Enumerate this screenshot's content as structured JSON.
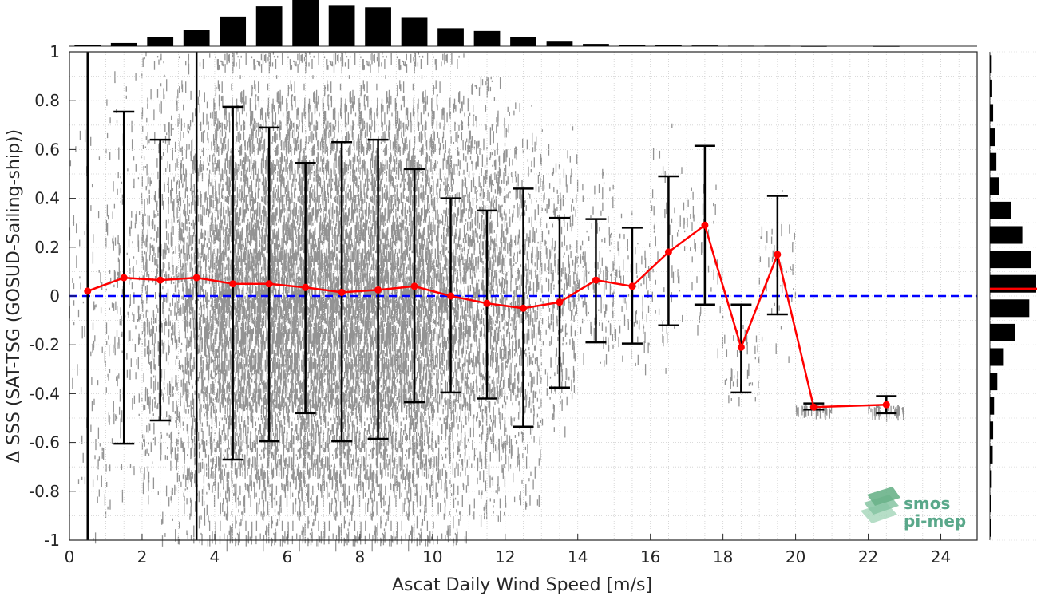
{
  "chart_data": {
    "type": "scatter",
    "xlabel": "Ascat Daily Wind Speed [m/s]",
    "ylabel": "Δ SSS (SAT-TSG (GOSUD-Sailing-ship))",
    "xlim": [
      0,
      25
    ],
    "ylim": [
      -1,
      1
    ],
    "x_ticks": [
      0,
      2,
      4,
      6,
      8,
      10,
      12,
      14,
      16,
      18,
      20,
      22,
      24
    ],
    "y_ticks": [
      -1,
      -0.8,
      -0.6,
      -0.4,
      -0.2,
      0,
      0.2,
      0.4,
      0.6,
      0.8,
      1
    ],
    "grid": true,
    "reference_line": {
      "y": 0,
      "color": "#0000ff",
      "style": "dashed"
    },
    "scatter_color": "#808080",
    "series": [
      {
        "type": "line-with-errorbars",
        "color": "#ff0000",
        "x": [
          0.5,
          1.5,
          2.5,
          3.5,
          4.5,
          5.5,
          6.5,
          7.5,
          8.5,
          9.5,
          10.5,
          11.5,
          12.5,
          13.5,
          14.5,
          15.5,
          16.5,
          17.5,
          18.5,
          19.5,
          20.5,
          22.5
        ],
        "mean": [
          0.02,
          0.075,
          0.065,
          0.075,
          0.05,
          0.05,
          0.035,
          0.015,
          0.025,
          0.04,
          0.0,
          -0.03,
          -0.05,
          -0.025,
          0.065,
          0.04,
          0.18,
          0.29,
          -0.21,
          0.17,
          -0.455,
          -0.445
        ],
        "lower": [
          -1.0,
          -0.605,
          -0.51,
          -1.0,
          -0.67,
          -0.595,
          -0.48,
          -0.595,
          -0.585,
          -0.435,
          -0.395,
          -0.42,
          -0.535,
          -0.375,
          -0.19,
          -0.195,
          -0.12,
          -0.035,
          -0.395,
          -0.075,
          -0.465,
          -0.48
        ],
        "upper": [
          1.0,
          0.755,
          0.64,
          1.0,
          0.775,
          0.69,
          0.545,
          0.63,
          0.64,
          0.52,
          0.4,
          0.35,
          0.44,
          0.32,
          0.315,
          0.28,
          0.49,
          0.615,
          -0.035,
          0.41,
          -0.44,
          -0.41
        ]
      }
    ],
    "scatter_density": {
      "x": [
        0.5,
        1.5,
        2.5,
        3.5,
        4.5,
        5.5,
        6.5,
        7.5,
        8.5,
        9.5,
        10.5,
        11.5,
        12.5,
        13.5,
        14.5,
        15.5,
        16.5,
        17.5,
        18.5,
        19.5,
        20.5,
        22.5
      ],
      "spread_low": [
        -1,
        -0.9,
        -1,
        -1,
        -1,
        -1,
        -1,
        -1,
        -1,
        -1,
        -1,
        -0.9,
        -0.85,
        -0.55,
        -0.3,
        -0.3,
        -0.3,
        -0.25,
        -0.48,
        -0.25,
        -0.47,
        -0.47
      ],
      "spread_high": [
        0.7,
        0.95,
        1,
        1,
        1,
        1,
        1,
        1,
        1,
        1,
        1,
        0.9,
        0.8,
        0.7,
        0.55,
        0.35,
        0.75,
        0.65,
        0,
        0.45,
        -0.44,
        -0.44
      ]
    },
    "top_histogram": {
      "x": [
        0.5,
        1.5,
        2.5,
        3.5,
        4.5,
        5.5,
        6.5,
        7.5,
        8.5,
        9.5,
        10.5,
        11.5,
        12.5,
        13.5,
        14.5,
        15.5,
        16.5,
        17.5,
        18.5,
        19.5,
        20.5,
        22.5
      ],
      "counts": [
        0.03,
        0.07,
        0.2,
        0.36,
        0.64,
        0.86,
        1.0,
        0.89,
        0.84,
        0.63,
        0.39,
        0.33,
        0.2,
        0.1,
        0.05,
        0.03,
        0.02,
        0.015,
        0.01,
        0.01,
        0.005,
        0.005
      ]
    },
    "right_histogram": {
      "y": [
        -0.95,
        -0.85,
        -0.75,
        -0.65,
        -0.55,
        -0.45,
        -0.35,
        -0.25,
        -0.15,
        -0.05,
        0.05,
        0.15,
        0.25,
        0.35,
        0.45,
        0.55,
        0.65,
        0.75,
        0.85,
        0.95
      ],
      "counts": [
        0.01,
        0.02,
        0.04,
        0.06,
        0.07,
        0.09,
        0.16,
        0.3,
        0.55,
        0.85,
        1.0,
        0.88,
        0.7,
        0.45,
        0.2,
        0.14,
        0.11,
        0.07,
        0.05,
        0.04
      ],
      "mean_marker": {
        "y": 0.03,
        "color": "#ff0000"
      }
    }
  },
  "logo": {
    "line1": "smos",
    "line2": "pi-mep",
    "color": "#5aa88a"
  }
}
